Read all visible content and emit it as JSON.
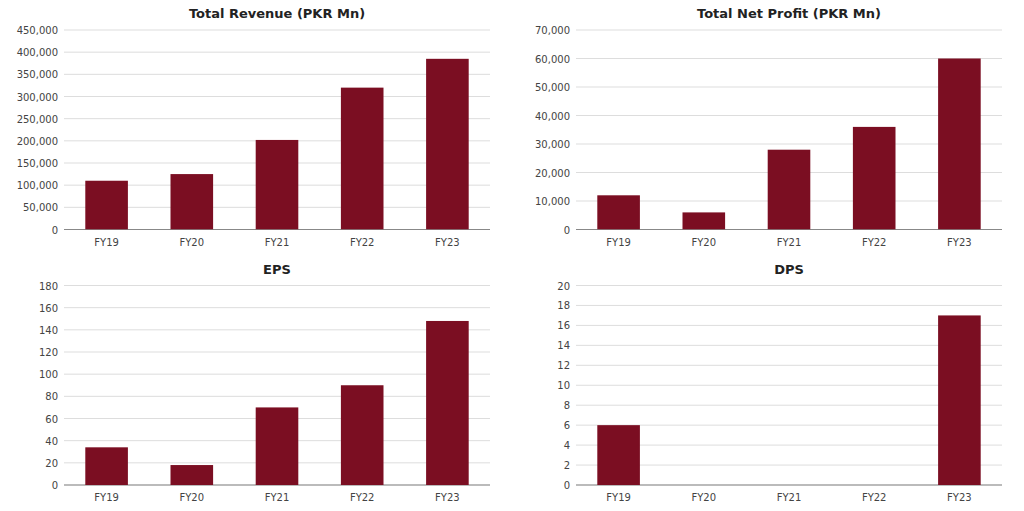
{
  "chart_data": [
    {
      "type": "bar",
      "title": "Total Revenue (PKR Mn)",
      "categories": [
        "FY19",
        "FY20",
        "FY21",
        "FY22",
        "FY23"
      ],
      "values": [
        110000,
        125000,
        202000,
        320000,
        385000
      ],
      "color": "#7B0E22",
      "ylim": [
        0,
        450000
      ],
      "yticks": [
        0,
        {
          "value": 50000,
          "label": "50,000"
        },
        {
          "value": 100000,
          "label": "100,000"
        },
        {
          "value": 150000,
          "label": "150,000"
        },
        {
          "value": 200000,
          "label": "200,000"
        },
        {
          "value": 250000,
          "label": "250,000"
        },
        {
          "value": 300000,
          "label": "300,000"
        },
        {
          "value": 350000,
          "label": "350,000"
        },
        {
          "value": 400000,
          "label": "400,000"
        },
        {
          "value": 450000,
          "label": "450,000"
        }
      ],
      "grid": true
    },
    {
      "type": "bar",
      "title": "Total Net Profit (PKR Mn)",
      "categories": [
        "FY19",
        "FY20",
        "FY21",
        "FY22",
        "FY23"
      ],
      "values": [
        12000,
        6000,
        28000,
        36000,
        60000
      ],
      "color": "#7B0E22",
      "ylim": [
        0,
        70000
      ],
      "yticks": [
        0,
        {
          "value": 10000,
          "label": "10,000"
        },
        {
          "value": 20000,
          "label": "20,000"
        },
        {
          "value": 30000,
          "label": "30,000"
        },
        {
          "value": 40000,
          "label": "40,000"
        },
        {
          "value": 50000,
          "label": "50,000"
        },
        {
          "value": 60000,
          "label": "60,000"
        },
        {
          "value": 70000,
          "label": "70,000"
        }
      ],
      "grid": true
    },
    {
      "type": "bar",
      "title": "EPS",
      "categories": [
        "FY19",
        "FY20",
        "FY21",
        "FY22",
        "FY23"
      ],
      "values": [
        34,
        18,
        70,
        90,
        148
      ],
      "color": "#7B0E22",
      "ylim": [
        0,
        180
      ],
      "yticks": [
        0,
        20,
        40,
        60,
        80,
        100,
        120,
        140,
        160,
        180
      ],
      "grid": true
    },
    {
      "type": "bar",
      "title": "DPS",
      "categories": [
        "FY19",
        "FY20",
        "FY21",
        "FY22",
        "FY23"
      ],
      "values": [
        6,
        0,
        0,
        0,
        17
      ],
      "color": "#7B0E22",
      "ylim": [
        0,
        20
      ],
      "yticks": [
        0,
        2,
        4,
        6,
        8,
        10,
        12,
        14,
        16,
        18,
        20
      ],
      "grid": true
    }
  ]
}
